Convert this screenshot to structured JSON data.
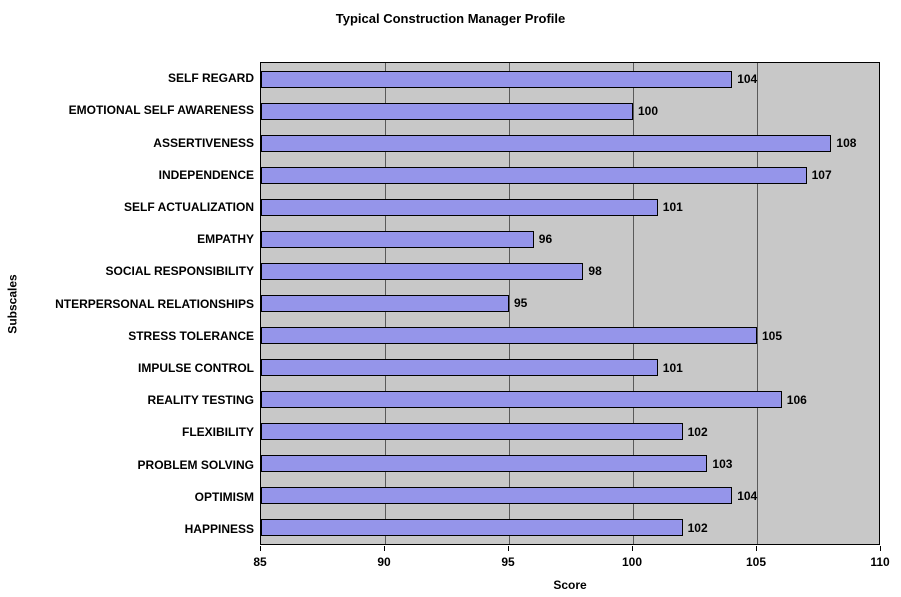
{
  "chart_data": {
    "type": "bar",
    "orientation": "horizontal",
    "title": "Typical Construction Manager Profile",
    "xlabel": "Score",
    "ylabel": "Subscales",
    "xlim": [
      85,
      110
    ],
    "xticks": [
      85,
      90,
      95,
      100,
      105,
      110
    ],
    "grid": true,
    "legend": false,
    "plot_bg": "#C8C8C8",
    "gridline_color": "#5A5A5A",
    "bar_color": "#9595EA",
    "bar_border": "#000000",
    "categories": [
      "SELF REGARD",
      "EMOTIONAL SELF AWARENESS",
      "ASSERTIVENESS",
      "INDEPENDENCE",
      "SELF ACTUALIZATION",
      "EMPATHY",
      "SOCIAL RESPONSIBILITY",
      "NTERPERSONAL RELATIONSHIPS",
      "STRESS TOLERANCE",
      "IMPULSE CONTROL",
      "REALITY TESTING",
      "FLEXIBILITY",
      "PROBLEM SOLVING",
      "OPTIMISM",
      "HAPPINESS"
    ],
    "values": [
      104,
      100,
      108,
      107,
      101,
      96,
      98,
      95,
      105,
      101,
      106,
      102,
      103,
      104,
      102
    ]
  }
}
